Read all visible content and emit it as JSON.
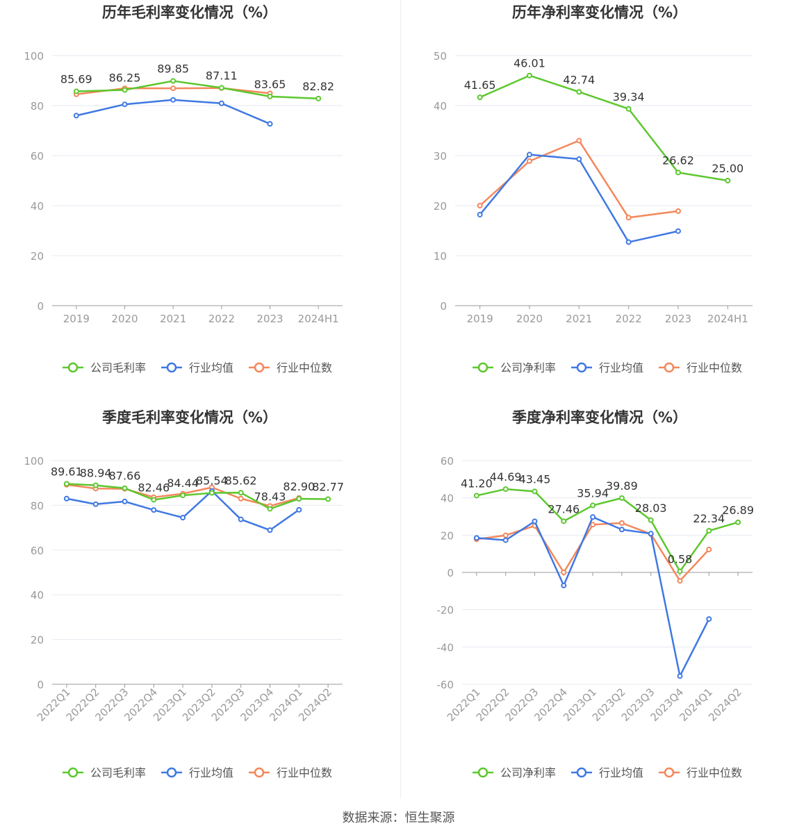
{
  "source_text": "数据来源：恒生聚源",
  "colors": {
    "company": "#5cc72d",
    "industry_avg": "#3f78e3",
    "industry_median": "#f4875a",
    "grid": "#e6e9f0",
    "axis": "#999999",
    "label": "#333333",
    "title": "#333333"
  },
  "chart_data": [
    {
      "type": "line",
      "title": "历年毛利率变化情况（%）",
      "categories": [
        "2019",
        "2020",
        "2021",
        "2022",
        "2023",
        "2024H1"
      ],
      "ylim": [
        0,
        100
      ],
      "yticks": [
        0,
        20,
        40,
        60,
        80,
        100
      ],
      "grid": true,
      "legend": "bottom",
      "label_series": 0,
      "series": [
        {
          "name": "公司毛利率",
          "values": [
            85.69,
            86.25,
            89.85,
            87.11,
            83.65,
            82.82
          ]
        },
        {
          "name": "行业均值",
          "values": [
            76.0,
            80.5,
            82.3,
            80.9,
            72.7,
            null
          ]
        },
        {
          "name": "行业中位数",
          "values": [
            84.5,
            86.9,
            86.9,
            87.0,
            84.9,
            null
          ]
        }
      ]
    },
    {
      "type": "line",
      "title": "历年净利率变化情况（%）",
      "categories": [
        "2019",
        "2020",
        "2021",
        "2022",
        "2023",
        "2024H1"
      ],
      "ylim": [
        0,
        50
      ],
      "yticks": [
        0,
        10,
        20,
        30,
        40,
        50
      ],
      "grid": true,
      "legend": "bottom",
      "label_series": 0,
      "series": [
        {
          "name": "公司净利率",
          "values": [
            41.65,
            46.01,
            42.74,
            39.34,
            26.62,
            25.0
          ]
        },
        {
          "name": "行业均值",
          "values": [
            18.2,
            30.2,
            29.3,
            12.7,
            14.9,
            null
          ]
        },
        {
          "name": "行业中位数",
          "values": [
            20.0,
            28.9,
            33.0,
            17.6,
            18.9,
            null
          ]
        }
      ]
    },
    {
      "type": "line",
      "title": "季度毛利率变化情况（%）",
      "categories": [
        "2022Q1",
        "2022Q2",
        "2022Q3",
        "2022Q4",
        "2023Q1",
        "2023Q2",
        "2023Q3",
        "2023Q4",
        "2024Q1",
        "2024Q2"
      ],
      "ylim": [
        0,
        100
      ],
      "yticks": [
        0,
        20,
        40,
        60,
        80,
        100
      ],
      "grid": true,
      "legend": "bottom",
      "label_series": 0,
      "rotate_x": true,
      "series": [
        {
          "name": "公司毛利率",
          "values": [
            89.61,
            88.94,
            87.66,
            82.46,
            84.44,
            85.54,
            85.62,
            78.43,
            82.9,
            82.77
          ]
        },
        {
          "name": "行业均值",
          "values": [
            83.0,
            80.5,
            81.7,
            77.9,
            74.5,
            86.4,
            73.7,
            68.9,
            78.0,
            null
          ]
        },
        {
          "name": "行业中位数",
          "values": [
            89.2,
            87.5,
            87.4,
            83.6,
            85.2,
            88.0,
            83.0,
            79.7,
            83.3,
            null
          ]
        }
      ]
    },
    {
      "type": "line",
      "title": "季度净利率变化情况（%）",
      "categories": [
        "2022Q1",
        "2022Q2",
        "2022Q3",
        "2022Q4",
        "2023Q1",
        "2023Q2",
        "2023Q3",
        "2023Q4",
        "2024Q1",
        "2024Q2"
      ],
      "ylim": [
        -60,
        60
      ],
      "yticks": [
        -60,
        -40,
        -20,
        0,
        20,
        40,
        60
      ],
      "grid": true,
      "legend": "bottom",
      "label_series": 0,
      "rotate_x": true,
      "series": [
        {
          "name": "公司净利率",
          "values": [
            41.2,
            44.69,
            43.45,
            27.46,
            35.94,
            39.89,
            28.03,
            0.58,
            22.34,
            26.89
          ]
        },
        {
          "name": "行业均值",
          "values": [
            18.5,
            17.3,
            27.4,
            -7.0,
            29.7,
            23.0,
            20.8,
            -55.6,
            -25.0,
            null
          ]
        },
        {
          "name": "行业中位数",
          "values": [
            17.8,
            19.9,
            25.0,
            0.0,
            25.6,
            26.5,
            20.6,
            -4.5,
            12.3,
            null
          ]
        }
      ]
    }
  ]
}
